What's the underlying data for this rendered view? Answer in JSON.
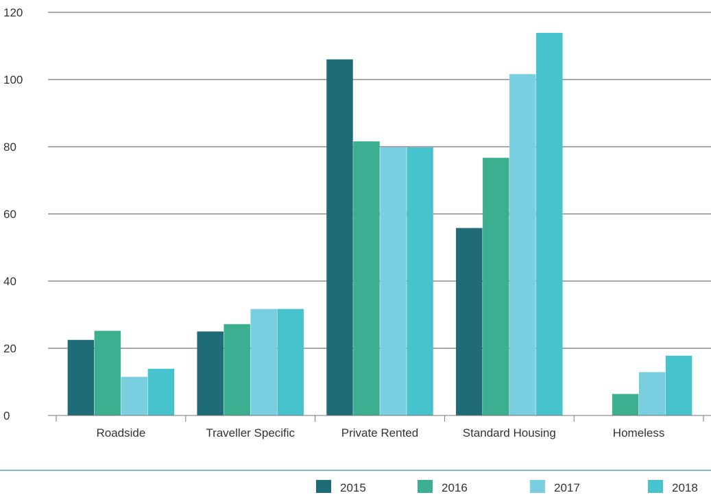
{
  "chart_data": {
    "type": "bar",
    "categories": [
      "Roadside",
      "Traveller Specific",
      "Private Rented",
      "Standard Housing",
      "Homeless"
    ],
    "series": [
      {
        "name": "2015",
        "color": "#1f6b78",
        "values": [
          22.5,
          25,
          106,
          55.8,
          null
        ]
      },
      {
        "name": "2016",
        "color": "#3caf91",
        "values": [
          25.2,
          27.2,
          81.6,
          76.7,
          6.4
        ]
      },
      {
        "name": "2017",
        "color": "#79cfe0",
        "values": [
          11.5,
          31.7,
          79.8,
          101.6,
          12.9
        ]
      },
      {
        "name": "2018",
        "color": "#46c3cd",
        "values": [
          13.9,
          31.7,
          79.8,
          113.9,
          17.8
        ]
      }
    ],
    "ylim": [
      0,
      120
    ],
    "yticks": [
      0,
      20,
      40,
      60,
      80,
      100,
      120
    ],
    "grid": true,
    "legend_position": "bottom-right"
  },
  "colors": {
    "grid": "#555555",
    "axis": "#777777",
    "separator": "#5fa7a8"
  }
}
